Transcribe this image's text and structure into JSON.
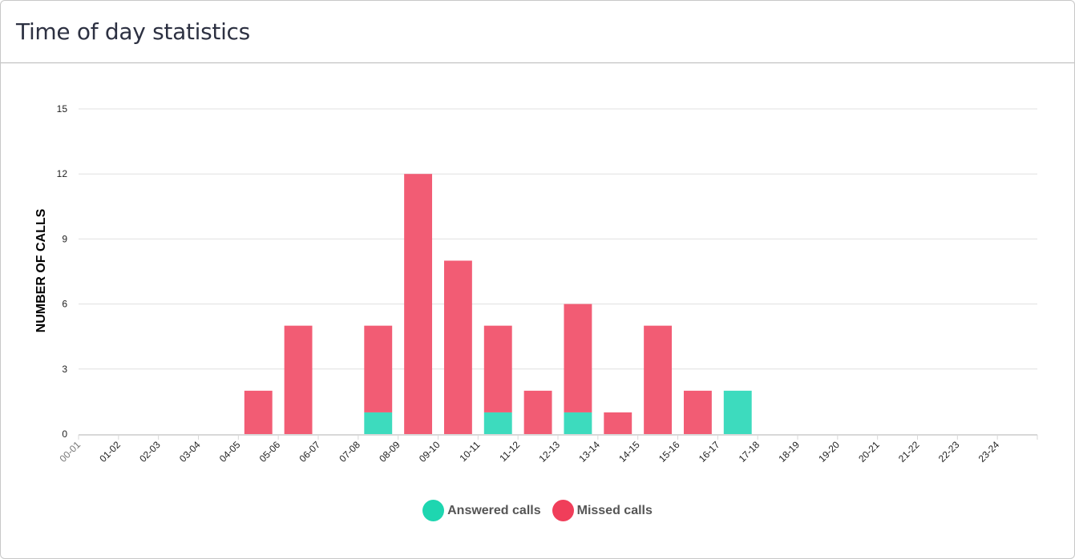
{
  "header": {
    "title": "Time of day statistics"
  },
  "chart_data": {
    "type": "bar",
    "stacked": true,
    "title": "",
    "xlabel": "",
    "ylabel": "NUMBER OF CALLS",
    "ylim": [
      0,
      15
    ],
    "yticks": [
      0,
      3,
      6,
      9,
      12,
      15
    ],
    "grid": true,
    "legend_position": "bottom",
    "categories": [
      "00-01",
      "01-02",
      "02-03",
      "03-04",
      "04-05",
      "05-06",
      "06-07",
      "07-08",
      "08-09",
      "09-10",
      "10-11",
      "11-12",
      "12-13",
      "13-14",
      "14-15",
      "15-16",
      "16-17",
      "17-18",
      "18-19",
      "19-20",
      "20-21",
      "21-22",
      "22-23",
      "23-24"
    ],
    "series": [
      {
        "name": "Answered calls",
        "color": "#3ddbbe",
        "legend_color": "#1ed6b0",
        "values": [
          0,
          0,
          0,
          0,
          0,
          0,
          0,
          1,
          0,
          0,
          1,
          0,
          1,
          0,
          0,
          0,
          2,
          0,
          0,
          0,
          0,
          0,
          0,
          0
        ]
      },
      {
        "name": "Missed calls",
        "color": "#f25c74",
        "legend_color": "#f03e5a",
        "values": [
          0,
          0,
          0,
          0,
          2,
          5,
          0,
          4,
          12,
          8,
          4,
          2,
          5,
          1,
          5,
          2,
          0,
          0,
          0,
          0,
          0,
          0,
          0,
          0
        ]
      }
    ]
  }
}
